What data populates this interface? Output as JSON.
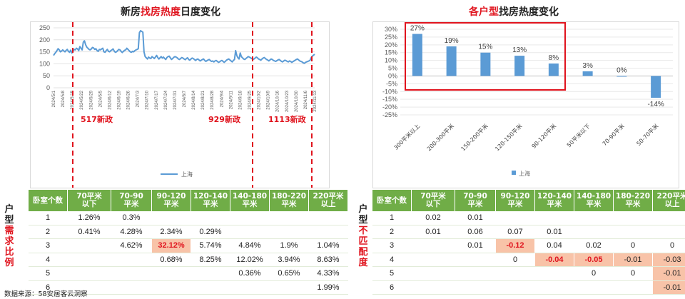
{
  "left_title": {
    "pre": "新房",
    "hl": "找房热度",
    "post": "日度变化"
  },
  "right_title": {
    "hl": "各户型",
    "post": "找房热度变化"
  },
  "left_side_label": {
    "top": "户型",
    "red": "需求比例"
  },
  "right_side_label": {
    "top": "户型",
    "red": "不匹配度"
  },
  "source": "数据来源：58安居客云洞察",
  "line_colors": {
    "series": "#5b9bd5",
    "marker": "#e0141e",
    "bars": "#5b9bd5",
    "header": "#70ad47",
    "highlight": "#f8c3a8"
  },
  "chart_data": [
    {
      "type": "line",
      "title": "新房找房热度日度变化",
      "xlabel": "",
      "ylabel": "",
      "ylim": [
        0,
        250
      ],
      "yticks": [
        0,
        50,
        100,
        150,
        200,
        250
      ],
      "grid": true,
      "legend": "bottom",
      "x_tick_labels": [
        "2024/5/1",
        "2024/5/8",
        "2024/5/15",
        "2024/5/22",
        "2024/5/29",
        "2024/6/5",
        "2024/6/12",
        "2024/6/19",
        "2024/6/26",
        "2024/7/3",
        "2024/7/10",
        "2024/7/17",
        "2024/7/24",
        "2024/7/31",
        "2024/8/7",
        "2024/8/14",
        "2024/8/21",
        "2024/8/28",
        "2024/9/4",
        "2024/9/11",
        "2024/9/18",
        "2024/9/25",
        "2024/10/2",
        "2024/10/9",
        "2024/10/16",
        "2024/10/23",
        "2024/10/30",
        "2024/11/6",
        "2024/11/13"
      ],
      "series": [
        {
          "name": "上海",
          "values": [
            135,
            142,
            148,
            155,
            163,
            158,
            150,
            153,
            158,
            154,
            150,
            156,
            160,
            152,
            148,
            157,
            145,
            152,
            160,
            158,
            165,
            162,
            155,
            172,
            165,
            158,
            190,
            196,
            180,
            170,
            165,
            160,
            158,
            162,
            168,
            166,
            160,
            163,
            155,
            152,
            160,
            158,
            162,
            165,
            150,
            148,
            155,
            160,
            152,
            150,
            155,
            158,
            162,
            153,
            148,
            150,
            155,
            160,
            158,
            152,
            147,
            152,
            156,
            158,
            165,
            160,
            155,
            150,
            148,
            152,
            150,
            155,
            158,
            160,
            163,
            230,
            238,
            235,
            232,
            150,
            130,
            125,
            120,
            128,
            124,
            122,
            130,
            126,
            122,
            128,
            135,
            126,
            120,
            125,
            130,
            124,
            128,
            122,
            118,
            126,
            130,
            132,
            125,
            118,
            122,
            127,
            130,
            128,
            125,
            120,
            118,
            122,
            126,
            124,
            120,
            117,
            122,
            125,
            118,
            115,
            120,
            124,
            122,
            118,
            114,
            118,
            120,
            116,
            112,
            115,
            118,
            120,
            114,
            110,
            113,
            116,
            118,
            113,
            110,
            112,
            108,
            112,
            114,
            110,
            106,
            108,
            112,
            114,
            110,
            106,
            110,
            115,
            118,
            120,
            116,
            112,
            108,
            114,
            118,
            155,
            135,
            125,
            120,
            145,
            130,
            125,
            120,
            118,
            122,
            126,
            130,
            128,
            125,
            122,
            118,
            120,
            124,
            128,
            125,
            120,
            118,
            115,
            120,
            124,
            126,
            122,
            118,
            116,
            112,
            116,
            120,
            118,
            114,
            112,
            110,
            113,
            116,
            118,
            114,
            110,
            108,
            112,
            115,
            113,
            110,
            108,
            112,
            110,
            106,
            109,
            112,
            115,
            118,
            120,
            116,
            112,
            110,
            108,
            104,
            102,
            106,
            108,
            110,
            112,
            115,
            126,
            132,
            136,
            140
          ]
        }
      ],
      "annotations": [
        "517新政",
        "929新政",
        "1113新政"
      ]
    },
    {
      "type": "bar",
      "title": "各户型找房热度变化",
      "categories": [
        "300平米以上",
        "200-300平米",
        "150-200平米",
        "120-150平米",
        "90-120平米",
        "50平米以下",
        "70-90平米",
        "50-70平米"
      ],
      "series": [
        {
          "name": "上海",
          "values": [
            27,
            19,
            15,
            13,
            8,
            3,
            0,
            -14
          ]
        }
      ],
      "data_labels": [
        "27%",
        "19%",
        "15%",
        "13%",
        "8%",
        "3%",
        "0%",
        "-14%"
      ],
      "ylim": [
        -25,
        30
      ],
      "yticks": [
        "30%",
        "25%",
        "20%",
        "15%",
        "10%",
        "5%",
        "0%",
        "-5%",
        "-10%",
        "-15%",
        "-20%",
        "-25%"
      ],
      "grid": true,
      "legend": "bottom"
    },
    {
      "type": "table",
      "title": "户型需求比例",
      "columns": [
        "卧室个数",
        "70平米以下",
        "70-90平米",
        "90-120平米",
        "120-140平米",
        "140-180平米",
        "180-220平米",
        "220平米以上"
      ],
      "header_lines": [
        [
          "卧室个数"
        ],
        [
          "70平米",
          "以下"
        ],
        [
          "70-90",
          "平米"
        ],
        [
          "90-120",
          "平米"
        ],
        [
          "120-140",
          "平米"
        ],
        [
          "140-180",
          "平米"
        ],
        [
          "180-220",
          "平米"
        ],
        [
          "220平米",
          "以上"
        ]
      ],
      "rows": [
        [
          "1",
          "1.26%",
          "0.3%",
          "",
          "",
          "",
          "",
          ""
        ],
        [
          "2",
          "0.41%",
          "4.28%",
          "2.34%",
          "0.29%",
          "",
          "",
          ""
        ],
        [
          "3",
          "",
          "4.62%",
          "32.12%",
          "5.74%",
          "4.84%",
          "1.9%",
          "1.04%"
        ],
        [
          "4",
          "",
          "",
          "0.68%",
          "8.25%",
          "12.02%",
          "3.94%",
          "8.63%"
        ],
        [
          "5",
          "",
          "",
          "",
          "",
          "0.36%",
          "0.65%",
          "4.33%"
        ],
        [
          "6",
          "",
          "",
          "",
          "",
          "",
          "",
          "1.99%"
        ]
      ]
    },
    {
      "type": "table",
      "title": "户型不匹配度",
      "columns": [
        "卧室个数",
        "70平米以下",
        "70-90平米",
        "90-120平米",
        "120-140平米",
        "140-180平米",
        "180-220平米",
        "220平米以上"
      ],
      "header_lines": [
        [
          "卧室个数"
        ],
        [
          "70平米",
          "以下"
        ],
        [
          "70-90",
          "平米"
        ],
        [
          "90-120",
          "平米"
        ],
        [
          "120-140",
          "平米"
        ],
        [
          "140-180",
          "平米"
        ],
        [
          "180-220",
          "平米"
        ],
        [
          "220平米",
          "以上"
        ]
      ],
      "rows": [
        [
          "1",
          "0.02",
          "0.01",
          "",
          "",
          "",
          "",
          ""
        ],
        [
          "2",
          "0.01",
          "0.06",
          "0.07",
          "0.01",
          "",
          "",
          ""
        ],
        [
          "3",
          "",
          "0.01",
          "-0.12",
          "0.04",
          "0.02",
          "0",
          "0"
        ],
        [
          "4",
          "",
          "",
          "0",
          "-0.04",
          "-0.05",
          "-0.01",
          "-0.03"
        ],
        [
          "5",
          "",
          "",
          "",
          "",
          "0",
          "0",
          "-0.01"
        ],
        [
          "6",
          "",
          "",
          "",
          "",
          "",
          "",
          "-0.01"
        ]
      ]
    }
  ]
}
